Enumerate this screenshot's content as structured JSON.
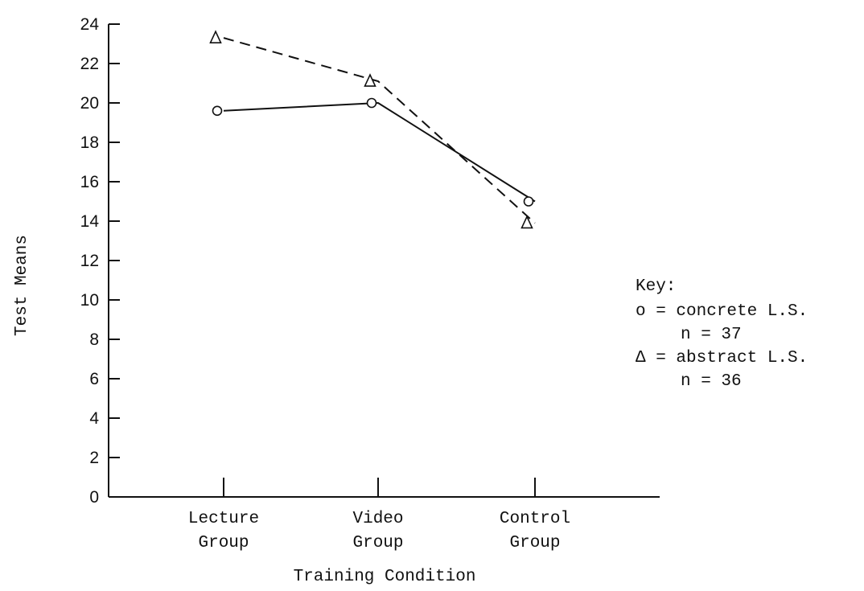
{
  "chart_data": {
    "type": "line",
    "title": "",
    "xlabel": "Training Condition",
    "ylabel": "Test Means",
    "ylim": [
      0,
      24
    ],
    "y_ticks": [
      0,
      2,
      4,
      6,
      8,
      10,
      12,
      14,
      16,
      18,
      20,
      22,
      24
    ],
    "categories": [
      [
        "Lecture",
        "Group"
      ],
      [
        "Video",
        "Group"
      ],
      [
        "Control",
        "Group"
      ]
    ],
    "series": [
      {
        "marker": "o",
        "line_style": "solid",
        "values": [
          19.6,
          20.0,
          15.0
        ]
      },
      {
        "marker": "Δ",
        "line_style": "dashed",
        "values": [
          23.3,
          21.1,
          13.9
        ]
      }
    ],
    "grid": false,
    "legend_placement": "right",
    "legend": {
      "title": "Key:",
      "lines": [
        "o = concrete L.S.",
        "n = 37",
        "Δ = abstract L.S.",
        "n = 36"
      ]
    }
  },
  "colors": {
    "ink": "#111111",
    "background": "#ffffff"
  }
}
